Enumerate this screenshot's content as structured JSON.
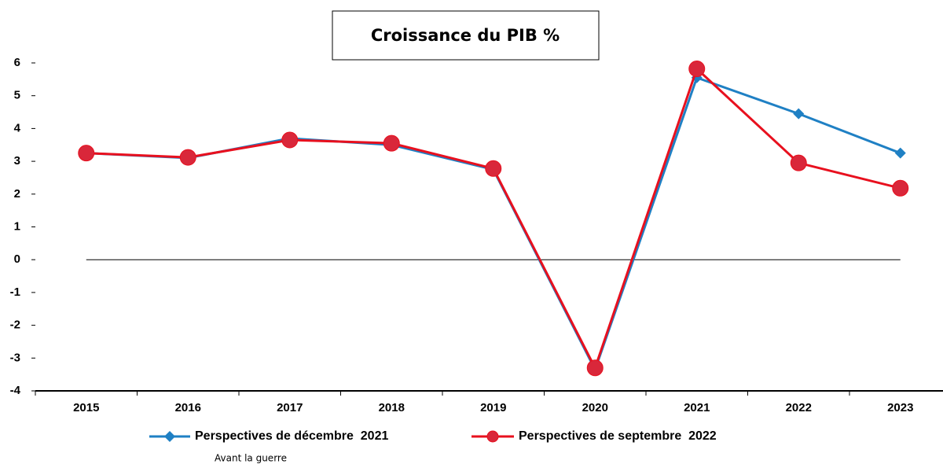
{
  "chart_data": {
    "type": "line",
    "title": "Croissance du PIB %",
    "categories": [
      "2015",
      "2016",
      "2017",
      "2018",
      "2019",
      "2020",
      "2021",
      "2022",
      "2023"
    ],
    "series": [
      {
        "name": "Perspectives de décembre  2021",
        "color": "#1f80c4",
        "marker": "diamond",
        "values": [
          3.25,
          3.1,
          3.7,
          3.5,
          2.75,
          -3.35,
          5.55,
          4.45,
          3.25
        ]
      },
      {
        "name": "Perspectives de septembre  2022",
        "color": "#e8101e",
        "marker": "circle",
        "values": [
          3.25,
          3.12,
          3.65,
          3.55,
          2.78,
          -3.3,
          5.82,
          2.95,
          2.18
        ]
      }
    ],
    "ylim": [
      -4,
      6
    ],
    "yticks": [
      -4,
      -3,
      -2,
      -1,
      0,
      1,
      2,
      3,
      4,
      5,
      6
    ],
    "annotation": "Avant la guerre"
  }
}
